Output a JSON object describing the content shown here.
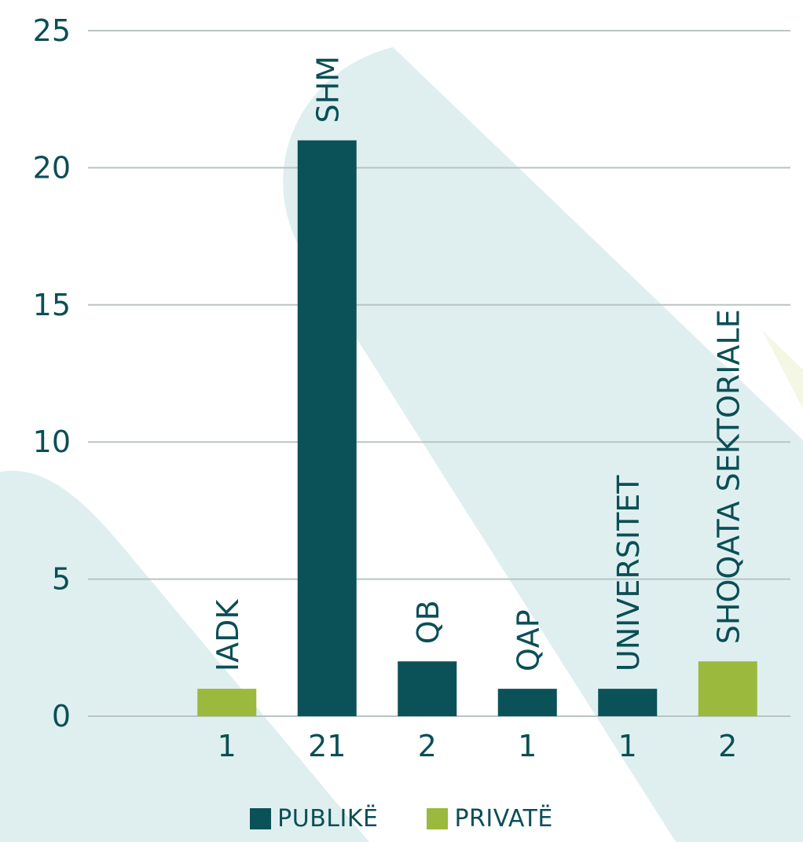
{
  "colors": {
    "publike": "#0b5258",
    "private": "#9bb93c",
    "text": "#0b4f55",
    "grid": "#b9c4c4",
    "background_shape": "#dfeff0"
  },
  "chart_data": {
    "type": "bar",
    "title": "",
    "xlabel": "",
    "ylabel": "",
    "ylim": [
      0,
      25
    ],
    "y_ticks": [
      "0",
      "5",
      "10",
      "15",
      "20",
      "25"
    ],
    "grid": true,
    "categories": [
      "IADK",
      "SHM",
      "QB",
      "QAP",
      "UNIVERSITET",
      "SHOQATA SEKTORIALE"
    ],
    "values": [
      1,
      21,
      2,
      1,
      1,
      2
    ],
    "value_labels": [
      "1",
      "21",
      "2",
      "1",
      "1",
      "2"
    ],
    "sector": [
      "PRIVATË",
      "PUBLIKË",
      "PUBLIKË",
      "PUBLIKË",
      "PUBLIKË",
      "PRIVATË"
    ],
    "legend": [
      {
        "name": "PUBLIKË",
        "color": "#0b5258"
      },
      {
        "name": "PRIVATË",
        "color": "#9bb93c"
      }
    ],
    "legend_position": "bottom"
  }
}
